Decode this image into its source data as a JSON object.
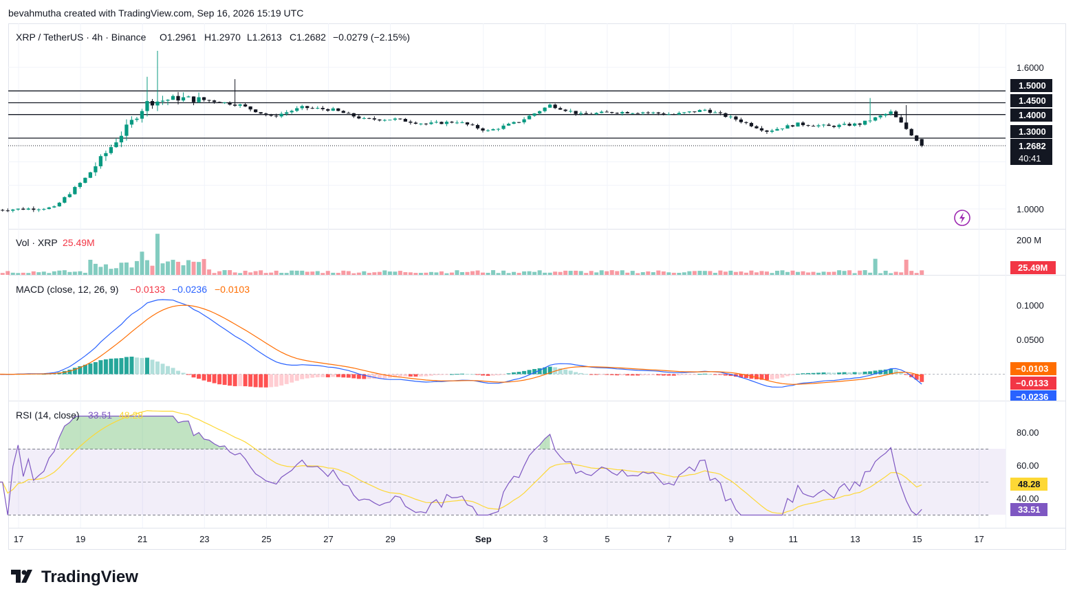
{
  "header": {
    "credit": "bevahmutha created with TradingView.com, Sep 16, 2026 15:19 UTC",
    "symbol": "XRP / TetherUS · 4h · Binance",
    "o": "O1.2961",
    "h": "H1.2970",
    "l": "L1.2613",
    "c": "C1.2682",
    "change": "−0.0279 (−2.15%)"
  },
  "price_axis": {
    "labels": [
      "1.6000",
      "1.0000"
    ],
    "hlines": [
      "1.5000",
      "1.4500",
      "1.4000",
      "1.3000"
    ],
    "last_price": "1.2682",
    "countdown": "40:41"
  },
  "volume": {
    "title": "Vol · XRP",
    "value": "25.49M",
    "axis_label": "200 M",
    "badge": "25.49M"
  },
  "macd": {
    "title": "MACD (close, 12, 26, 9)",
    "hist_value": "−0.0133",
    "macd_value": "−0.0236",
    "signal_value": "−0.0103",
    "axis_labels": [
      "0.1000",
      "0.0500"
    ],
    "badges": [
      "−0.0103",
      "−0.0133",
      "−0.0236"
    ]
  },
  "rsi": {
    "title": "RSI (14, close)",
    "rsi_value": "33.51",
    "ma_value": "48.28",
    "axis_labels": [
      "80.00",
      "60.00",
      "40.00"
    ],
    "badges": [
      "48.28",
      "33.51"
    ]
  },
  "time_axis": {
    "labels": [
      "17",
      "19",
      "21",
      "23",
      "25",
      "27",
      "29",
      "Sep",
      "3",
      "5",
      "7",
      "9",
      "11",
      "13",
      "15",
      "17"
    ]
  },
  "brand": {
    "name": "TradingView"
  },
  "colors": {
    "up": "#089981",
    "down": "#f23645",
    "macd_line": "#2962ff",
    "signal_line": "#ff6d00",
    "rsi_line": "#7e57c2",
    "rsi_ma": "#fdd835"
  },
  "chart_data": {
    "type": "candlestick",
    "interval": "4h",
    "x_range": [
      "2026-08-17",
      "2026-09-16"
    ],
    "price_ylim": [
      0.98,
      1.68
    ],
    "levels": [
      1.5,
      1.45,
      1.4,
      1.3
    ],
    "daily_close_approx": [
      {
        "date": "2026-08-17",
        "close": 0.995
      },
      {
        "date": "2026-08-18",
        "close": 1.0
      },
      {
        "date": "2026-08-19",
        "close": 1.005
      },
      {
        "date": "2026-08-20",
        "close": 1.13
      },
      {
        "date": "2026-08-21",
        "close": 1.29
      },
      {
        "date": "2026-08-22",
        "close": 1.45
      },
      {
        "date": "2026-08-23",
        "close": 1.47
      },
      {
        "date": "2026-08-24",
        "close": 1.46
      },
      {
        "date": "2026-08-25",
        "close": 1.44
      },
      {
        "date": "2026-08-26",
        "close": 1.39
      },
      {
        "date": "2026-08-27",
        "close": 1.43
      },
      {
        "date": "2026-08-28",
        "close": 1.42
      },
      {
        "date": "2026-08-29",
        "close": 1.38
      },
      {
        "date": "2026-08-30",
        "close": 1.38
      },
      {
        "date": "2026-08-31",
        "close": 1.36
      },
      {
        "date": "2026-09-01",
        "close": 1.37
      },
      {
        "date": "2026-09-02",
        "close": 1.33
      },
      {
        "date": "2026-09-03",
        "close": 1.37
      },
      {
        "date": "2026-09-04",
        "close": 1.44
      },
      {
        "date": "2026-09-05",
        "close": 1.4
      },
      {
        "date": "2026-09-06",
        "close": 1.41
      },
      {
        "date": "2026-09-07",
        "close": 1.41
      },
      {
        "date": "2026-09-08",
        "close": 1.4
      },
      {
        "date": "2026-09-09",
        "close": 1.42
      },
      {
        "date": "2026-09-10",
        "close": 1.38
      },
      {
        "date": "2026-09-11",
        "close": 1.33
      },
      {
        "date": "2026-09-12",
        "close": 1.36
      },
      {
        "date": "2026-09-13",
        "close": 1.35
      },
      {
        "date": "2026-09-14",
        "close": 1.36
      },
      {
        "date": "2026-09-15",
        "close": 1.41
      },
      {
        "date": "2026-09-16",
        "close": 1.2682
      }
    ],
    "last_ohlc": {
      "open": 1.2961,
      "high": 1.297,
      "low": 1.2613,
      "close": 1.2682
    },
    "volume_last": 25490000,
    "volume_ylim": [
      0,
      200000000
    ],
    "macd_last": {
      "macd": -0.0236,
      "signal": -0.0103,
      "hist": -0.0133
    },
    "macd_ylim": [
      -0.045,
      0.135
    ],
    "rsi_last": {
      "rsi": 33.51,
      "ma": 48.28
    },
    "rsi_band": [
      30,
      70
    ],
    "rsi_ylim": [
      28,
      92
    ]
  }
}
